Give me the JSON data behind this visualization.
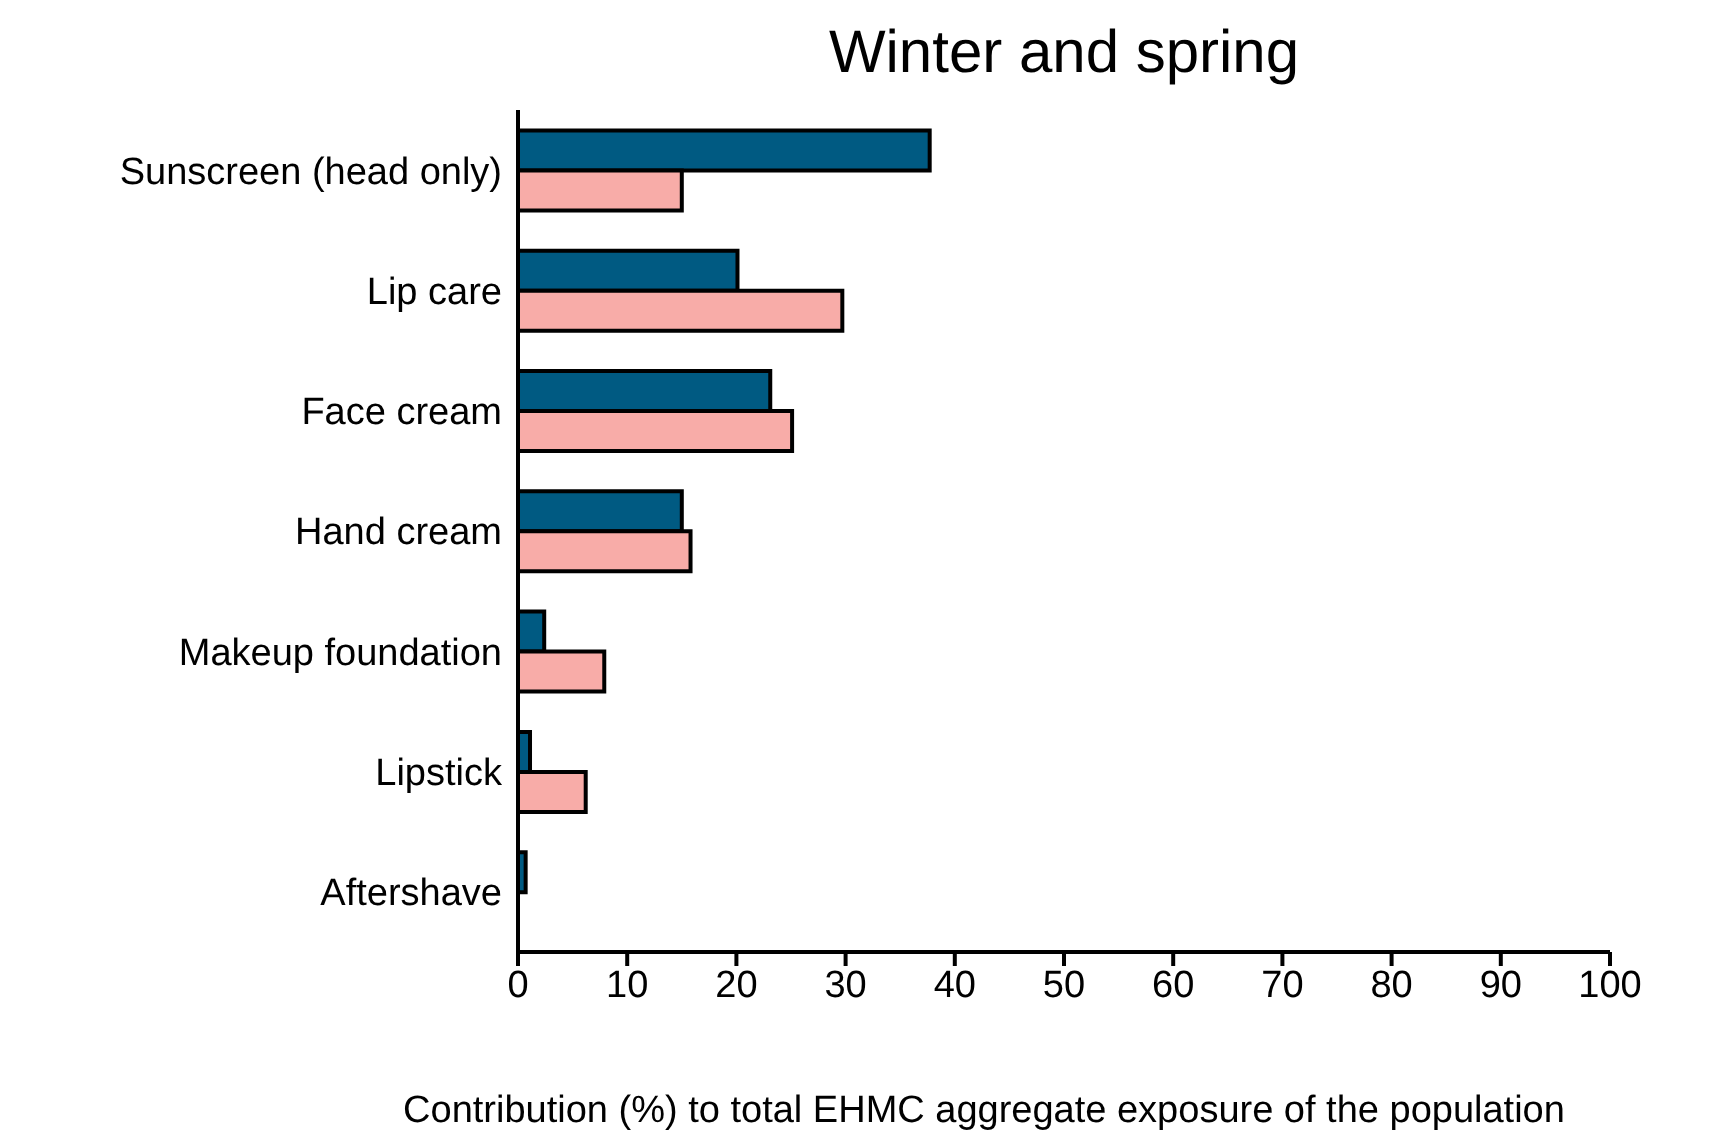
{
  "chart_data": {
    "type": "bar",
    "orientation": "horizontal",
    "title": "Winter and spring",
    "xlabel": "Contribution (%) to total EHMC aggregate exposure of the population",
    "categories": [
      "Sunscreen (head only)",
      "Lip care",
      "Face cream",
      "Hand cream",
      "Makeup foundation",
      "Lipstick",
      "Aftershave"
    ],
    "series": [
      {
        "color": "#005a82",
        "values": [
          37.7,
          20.1,
          23.1,
          15,
          2.4,
          1.1,
          0.7
        ]
      },
      {
        "color": "#f8aca8",
        "values": [
          15,
          29.7,
          25.1,
          15.8,
          7.9,
          6.2,
          null
        ]
      }
    ],
    "xlim": [
      0,
      100
    ],
    "xticks": [
      0,
      10,
      20,
      30,
      40,
      50,
      60,
      70,
      80,
      90,
      100
    ],
    "grid": false,
    "legend": false
  }
}
